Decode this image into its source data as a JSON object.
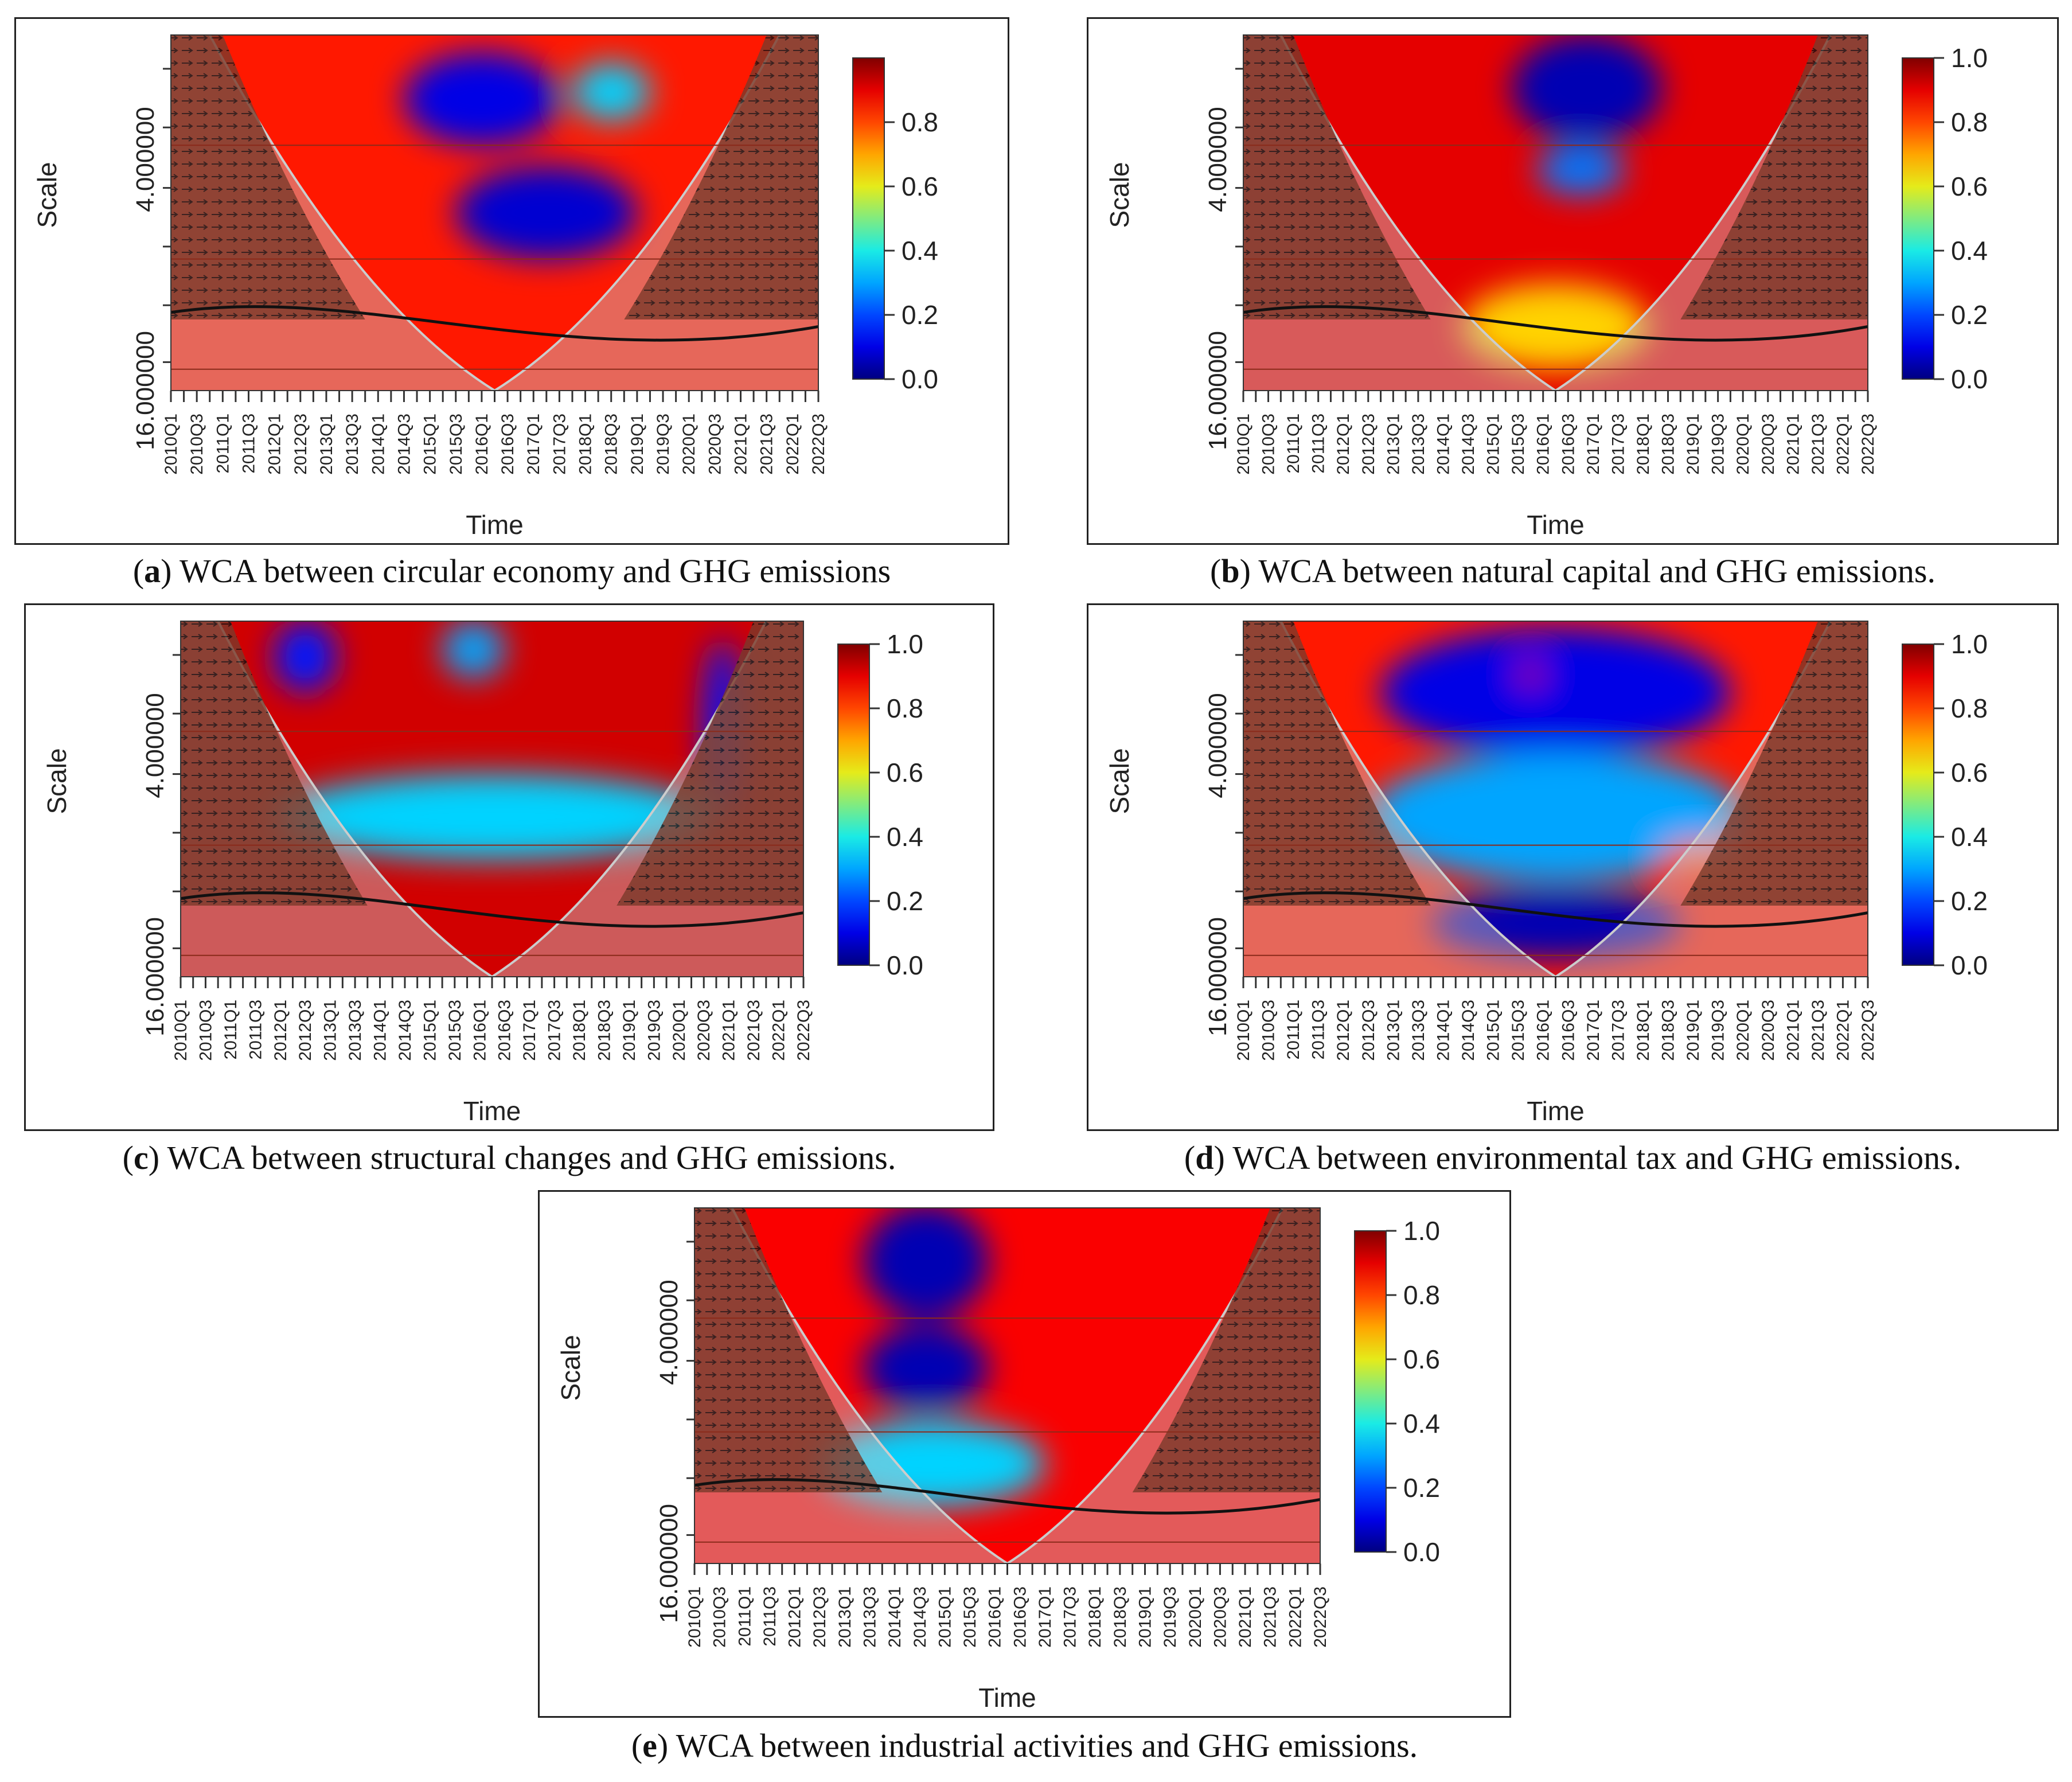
{
  "chart_data": [
    {
      "id": "a",
      "type": "heatmap",
      "title": "",
      "caption_letter": "a",
      "caption_text": "WCA between circular economy and GHG emissions",
      "xlabel": "Time",
      "ylabel": "Scale",
      "y_tick_labels": [
        "4.000000",
        "16.000000"
      ],
      "x_tick_labels": [
        "2010Q1",
        "2010Q3",
        "2011Q1",
        "2011Q3",
        "2012Q1",
        "2012Q3",
        "2013Q1",
        "2013Q3",
        "2014Q1",
        "2014Q3",
        "2015Q1",
        "2015Q3",
        "2016Q1",
        "2016Q3",
        "2017Q1",
        "2017Q3",
        "2018Q1",
        "2018Q3",
        "2019Q1",
        "2019Q3",
        "2020Q1",
        "2020Q3",
        "2021Q1",
        "2021Q3",
        "2022Q1",
        "2022Q3"
      ],
      "colorbar_ticks": [
        "0.0",
        "0.2",
        "0.4",
        "0.6",
        "0.8"
      ],
      "colorbar_range": [
        0,
        1
      ],
      "blobs": [
        {
          "t": 0.48,
          "s": 0.18,
          "rx": 0.12,
          "ry": 0.13,
          "v": 0.1
        },
        {
          "t": 0.68,
          "s": 0.16,
          "rx": 0.06,
          "ry": 0.08,
          "v": 0.35
        },
        {
          "t": 0.58,
          "s": 0.5,
          "rx": 0.14,
          "ry": 0.13,
          "v": 0.08
        }
      ],
      "base_level": 0.85
    },
    {
      "id": "b",
      "type": "heatmap",
      "title": "",
      "caption_letter": "b",
      "caption_text": "WCA between natural capital and GHG emissions.",
      "xlabel": "Time",
      "ylabel": "Scale",
      "y_tick_labels": [
        "4.000000",
        "16.000000"
      ],
      "x_tick_labels": [
        "2010Q1",
        "2010Q3",
        "2011Q1",
        "2011Q3",
        "2012Q1",
        "2012Q3",
        "2013Q1",
        "2013Q3",
        "2014Q1",
        "2014Q3",
        "2015Q1",
        "2015Q3",
        "2016Q1",
        "2016Q3",
        "2017Q1",
        "2017Q3",
        "2018Q1",
        "2018Q3",
        "2019Q1",
        "2019Q3",
        "2020Q1",
        "2020Q3",
        "2021Q1",
        "2021Q3",
        "2022Q1",
        "2022Q3"
      ],
      "colorbar_ticks": [
        "0.0",
        "0.2",
        "0.4",
        "0.6",
        "0.8",
        "1.0"
      ],
      "colorbar_range": [
        0,
        1
      ],
      "blobs": [
        {
          "t": 0.55,
          "s": 0.15,
          "rx": 0.12,
          "ry": 0.15,
          "v": 0.05
        },
        {
          "t": 0.54,
          "s": 0.38,
          "rx": 0.07,
          "ry": 0.07,
          "v": 0.25
        },
        {
          "t": 0.5,
          "s": 0.82,
          "rx": 0.15,
          "ry": 0.12,
          "v": 0.65
        }
      ],
      "base_level": 0.9
    },
    {
      "id": "c",
      "type": "heatmap",
      "title": "",
      "caption_letter": "c",
      "caption_text": "WCA between structural changes and GHG emissions.",
      "xlabel": "Time",
      "ylabel": "Scale",
      "y_tick_labels": [
        "4.000000",
        "16.000000"
      ],
      "x_tick_labels": [
        "2010Q1",
        "2010Q3",
        "2011Q1",
        "2011Q3",
        "2012Q1",
        "2012Q3",
        "2013Q1",
        "2013Q3",
        "2014Q1",
        "2014Q3",
        "2015Q1",
        "2015Q3",
        "2016Q1",
        "2016Q3",
        "2017Q1",
        "2017Q3",
        "2018Q1",
        "2018Q3",
        "2019Q1",
        "2019Q3",
        "2020Q1",
        "2020Q3",
        "2021Q1",
        "2021Q3",
        "2022Q1",
        "2022Q3"
      ],
      "colorbar_ticks": [
        "0.0",
        "0.2",
        "0.4",
        "0.6",
        "0.8",
        "1.0"
      ],
      "colorbar_range": [
        0,
        1
      ],
      "blobs": [
        {
          "t": 0.2,
          "s": 0.1,
          "rx": 0.05,
          "ry": 0.1,
          "v": 0.15
        },
        {
          "t": 0.47,
          "s": 0.08,
          "rx": 0.05,
          "ry": 0.08,
          "v": 0.3
        },
        {
          "t": 0.5,
          "s": 0.55,
          "rx": 0.35,
          "ry": 0.12,
          "v": 0.35
        },
        {
          "t": 0.87,
          "s": 0.3,
          "rx": 0.03,
          "ry": 0.25,
          "v": 0.15
        }
      ],
      "base_level": 0.92
    },
    {
      "id": "d",
      "type": "heatmap",
      "title": "",
      "caption_letter": "d",
      "caption_text": "WCA between environmental tax and GHG emissions.",
      "xlabel": "Time",
      "ylabel": "Scale",
      "y_tick_labels": [
        "4.000000",
        "16.000000"
      ],
      "x_tick_labels": [
        "2010Q1",
        "2010Q3",
        "2011Q1",
        "2011Q3",
        "2012Q1",
        "2012Q3",
        "2013Q1",
        "2013Q3",
        "2014Q1",
        "2014Q3",
        "2015Q1",
        "2015Q3",
        "2016Q1",
        "2016Q3",
        "2017Q1",
        "2017Q3",
        "2018Q1",
        "2018Q3",
        "2019Q1",
        "2019Q3",
        "2020Q1",
        "2020Q3",
        "2021Q1",
        "2021Q3",
        "2022Q1",
        "2022Q3"
      ],
      "colorbar_ticks": [
        "0.0",
        "0.2",
        "0.4",
        "0.6",
        "0.8",
        "1.0"
      ],
      "colorbar_range": [
        0,
        1
      ],
      "blobs": [
        {
          "t": 0.5,
          "s": 0.2,
          "rx": 0.28,
          "ry": 0.18,
          "v": 0.1
        },
        {
          "t": 0.5,
          "s": 0.55,
          "rx": 0.3,
          "ry": 0.18,
          "v": 0.3
        },
        {
          "t": 0.5,
          "s": 0.85,
          "rx": 0.2,
          "ry": 0.1,
          "v": 0.05
        },
        {
          "t": 0.46,
          "s": 0.15,
          "rx": 0.02,
          "ry": 0.03,
          "v": 0.95
        },
        {
          "t": 0.73,
          "s": 0.66,
          "rx": 0.06,
          "ry": 0.04,
          "v": 0.75
        }
      ],
      "base_level": 0.85
    },
    {
      "id": "e",
      "type": "heatmap",
      "title": "",
      "caption_letter": "e",
      "caption_text": "WCA between industrial activities and GHG emissions.",
      "xlabel": "Time",
      "ylabel": "Scale",
      "y_tick_labels": [
        "4.000000",
        "16.000000"
      ],
      "x_tick_labels": [
        "2010Q1",
        "2010Q3",
        "2011Q1",
        "2011Q3",
        "2012Q1",
        "2012Q3",
        "2013Q1",
        "2013Q3",
        "2014Q1",
        "2014Q3",
        "2015Q1",
        "2015Q3",
        "2016Q1",
        "2016Q3",
        "2017Q1",
        "2017Q3",
        "2018Q1",
        "2018Q3",
        "2019Q1",
        "2019Q3",
        "2020Q1",
        "2020Q3",
        "2021Q1",
        "2021Q3",
        "2022Q1",
        "2022Q3"
      ],
      "colorbar_ticks": [
        "0.0",
        "0.2",
        "0.4",
        "0.6",
        "0.8",
        "1.0"
      ],
      "colorbar_range": [
        0,
        1
      ],
      "blobs": [
        {
          "t": 0.37,
          "s": 0.15,
          "rx": 0.1,
          "ry": 0.16,
          "v": 0.05
        },
        {
          "t": 0.37,
          "s": 0.45,
          "rx": 0.1,
          "ry": 0.12,
          "v": 0.05
        },
        {
          "t": 0.38,
          "s": 0.72,
          "rx": 0.18,
          "ry": 0.12,
          "v": 0.35
        }
      ],
      "base_level": 0.88
    }
  ]
}
